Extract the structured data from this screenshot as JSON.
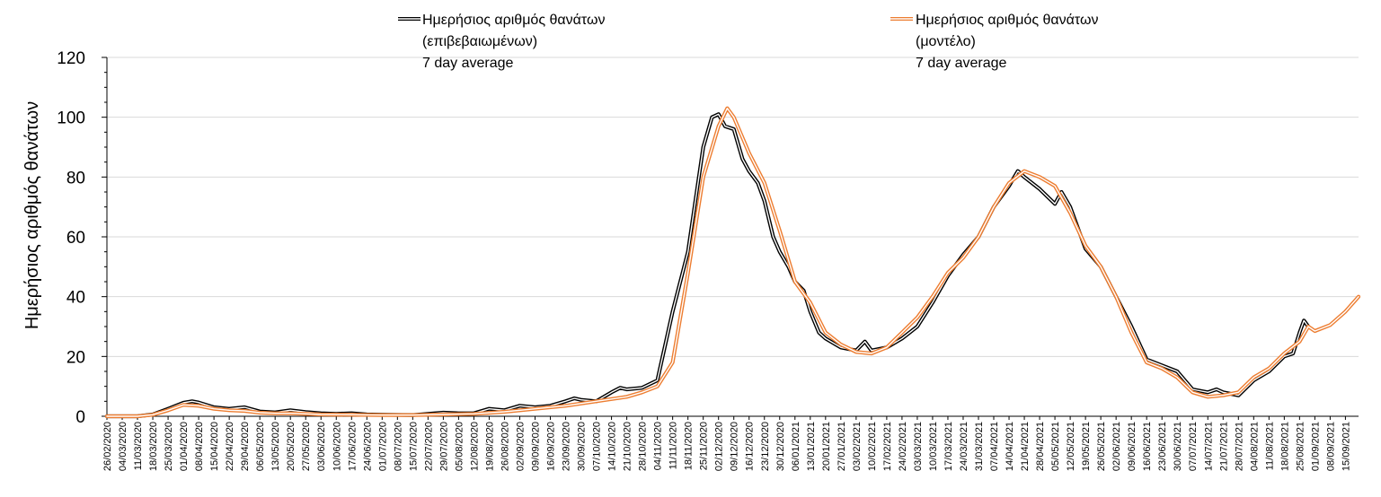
{
  "chart_data": {
    "type": "line",
    "title": "",
    "xlabel": "",
    "ylabel": "Ημερήσιος αριθμός θανάτων",
    "ylim": [
      0,
      120
    ],
    "yticks": [
      0,
      20,
      40,
      60,
      80,
      100,
      120
    ],
    "grid": "horizontal",
    "legend_position": "top",
    "x_start": "26/02/2020",
    "x_end": "21/09/2021",
    "x_tick_labels": [
      "26/02/2020",
      "04/03/2020",
      "11/03/2020",
      "18/03/2020",
      "25/03/2020",
      "01/04/2020",
      "08/04/2020",
      "15/04/2020",
      "22/04/2020",
      "29/04/2020",
      "06/05/2020",
      "13/05/2020",
      "20/05/2020",
      "27/05/2020",
      "03/06/2020",
      "10/06/2020",
      "17/06/2020",
      "24/06/2020",
      "01/07/2020",
      "08/07/2020",
      "15/07/2020",
      "22/07/2020",
      "29/07/2020",
      "05/08/2020",
      "12/08/2020",
      "19/08/2020",
      "26/08/2020",
      "02/09/2020",
      "09/09/2020",
      "16/09/2020",
      "23/09/2020",
      "30/09/2020",
      "07/10/2020",
      "14/10/2020",
      "21/10/2020",
      "28/10/2020",
      "04/11/2020",
      "11/11/2020",
      "18/11/2020",
      "25/11/2020",
      "02/12/2020",
      "09/12/2020",
      "16/12/2020",
      "23/12/2020",
      "30/12/2020",
      "06/01/2021",
      "13/01/2021",
      "20/01/2021",
      "27/01/2021",
      "03/02/2021",
      "10/02/2021",
      "17/02/2021",
      "24/02/2021",
      "03/03/2021",
      "10/03/2021",
      "17/03/2021",
      "24/03/2021",
      "31/03/2021",
      "07/04/2021",
      "14/04/2021",
      "21/04/2021",
      "28/04/2021",
      "05/05/2021",
      "12/05/2021",
      "19/05/2021",
      "26/05/2021",
      "02/06/2021",
      "09/06/2021",
      "16/06/2021",
      "23/06/2021",
      "30/06/2021",
      "07/07/2021",
      "14/07/2021",
      "21/07/2021",
      "28/07/2021",
      "04/08/2021",
      "11/08/2021",
      "18/08/2021",
      "25/08/2021",
      "01/09/2021",
      "08/09/2021",
      "15/09/2021"
    ],
    "series": [
      {
        "name_lines": [
          "Ημερήσιος αριθμός θανάτων",
          "(επιβεβαιωμένων)",
          "7 day average"
        ],
        "color": "#000000",
        "style": "double-line",
        "points": [
          [
            "26/02/2020",
            0
          ],
          [
            "11/03/2020",
            0
          ],
          [
            "18/03/2020",
            0.6
          ],
          [
            "25/03/2020",
            2.5
          ],
          [
            "01/04/2020",
            4.5
          ],
          [
            "05/04/2020",
            5
          ],
          [
            "08/04/2020",
            4.6
          ],
          [
            "15/04/2020",
            3
          ],
          [
            "22/04/2020",
            2.5
          ],
          [
            "29/04/2020",
            3
          ],
          [
            "06/05/2020",
            1.6
          ],
          [
            "13/05/2020",
            1.3
          ],
          [
            "20/05/2020",
            2
          ],
          [
            "27/05/2020",
            1.4
          ],
          [
            "03/06/2020",
            1
          ],
          [
            "10/06/2020",
            0.8
          ],
          [
            "17/06/2020",
            1
          ],
          [
            "24/06/2020",
            0.6
          ],
          [
            "01/07/2020",
            0.5
          ],
          [
            "15/07/2020",
            0.4
          ],
          [
            "22/07/2020",
            0.8
          ],
          [
            "29/07/2020",
            1.2
          ],
          [
            "05/08/2020",
            1
          ],
          [
            "12/08/2020",
            1
          ],
          [
            "19/08/2020",
            2.5
          ],
          [
            "26/08/2020",
            2
          ],
          [
            "02/09/2020",
            3.5
          ],
          [
            "09/09/2020",
            3
          ],
          [
            "16/09/2020",
            3.5
          ],
          [
            "23/09/2020",
            5
          ],
          [
            "27/09/2020",
            6
          ],
          [
            "30/09/2020",
            5.5
          ],
          [
            "07/10/2020",
            5
          ],
          [
            "14/10/2020",
            8
          ],
          [
            "18/10/2020",
            9.5
          ],
          [
            "21/10/2020",
            9
          ],
          [
            "28/10/2020",
            9.5
          ],
          [
            "04/11/2020",
            12
          ],
          [
            "11/11/2020",
            35
          ],
          [
            "18/11/2020",
            55
          ],
          [
            "25/11/2020",
            90
          ],
          [
            "29/11/2020",
            100
          ],
          [
            "02/12/2020",
            101
          ],
          [
            "05/12/2020",
            97
          ],
          [
            "09/12/2020",
            96
          ],
          [
            "13/12/2020",
            86
          ],
          [
            "16/12/2020",
            82
          ],
          [
            "20/12/2020",
            78
          ],
          [
            "23/12/2020",
            72
          ],
          [
            "27/12/2020",
            60
          ],
          [
            "30/12/2020",
            55
          ],
          [
            "03/01/2021",
            50
          ],
          [
            "06/01/2021",
            45
          ],
          [
            "10/01/2021",
            42
          ],
          [
            "13/01/2021",
            35
          ],
          [
            "17/01/2021",
            28
          ],
          [
            "20/01/2021",
            26
          ],
          [
            "27/01/2021",
            23
          ],
          [
            "03/02/2021",
            22
          ],
          [
            "07/02/2021",
            25
          ],
          [
            "10/02/2021",
            22
          ],
          [
            "17/02/2021",
            23
          ],
          [
            "24/02/2021",
            26
          ],
          [
            "03/03/2021",
            30
          ],
          [
            "10/03/2021",
            38
          ],
          [
            "17/03/2021",
            47
          ],
          [
            "24/03/2021",
            54
          ],
          [
            "31/03/2021",
            60
          ],
          [
            "07/04/2021",
            70
          ],
          [
            "14/04/2021",
            77
          ],
          [
            "18/04/2021",
            82
          ],
          [
            "21/04/2021",
            80
          ],
          [
            "28/04/2021",
            76
          ],
          [
            "05/05/2021",
            71
          ],
          [
            "08/05/2021",
            75
          ],
          [
            "12/05/2021",
            70
          ],
          [
            "19/05/2021",
            56
          ],
          [
            "26/05/2021",
            50
          ],
          [
            "02/06/2021",
            40
          ],
          [
            "09/06/2021",
            30
          ],
          [
            "16/06/2021",
            19
          ],
          [
            "23/06/2021",
            17
          ],
          [
            "30/06/2021",
            15
          ],
          [
            "07/07/2021",
            9
          ],
          [
            "14/07/2021",
            8
          ],
          [
            "18/07/2021",
            9
          ],
          [
            "21/07/2021",
            8
          ],
          [
            "28/07/2021",
            7
          ],
          [
            "04/08/2021",
            12
          ],
          [
            "11/08/2021",
            15
          ],
          [
            "18/08/2021",
            20
          ],
          [
            "22/08/2021",
            21
          ],
          [
            "25/08/2021",
            28
          ],
          [
            "27/08/2021",
            32
          ],
          [
            "29/08/2021",
            30
          ]
        ]
      },
      {
        "name_lines": [
          "Ημερήσιος αριθμός θανάτων",
          "(μοντέλο)",
          "7 day average"
        ],
        "color": "#ed7d31",
        "style": "double-line",
        "points": [
          [
            "26/02/2020",
            0
          ],
          [
            "11/03/2020",
            0
          ],
          [
            "18/03/2020",
            0.5
          ],
          [
            "25/03/2020",
            2
          ],
          [
            "01/04/2020",
            3.8
          ],
          [
            "08/04/2020",
            3.5
          ],
          [
            "15/04/2020",
            2.5
          ],
          [
            "22/04/2020",
            2
          ],
          [
            "29/04/2020",
            1.8
          ],
          [
            "06/05/2020",
            1.2
          ],
          [
            "13/05/2020",
            1
          ],
          [
            "20/05/2020",
            1
          ],
          [
            "27/05/2020",
            0.8
          ],
          [
            "03/06/2020",
            0.6
          ],
          [
            "17/06/2020",
            0.5
          ],
          [
            "01/07/2020",
            0.4
          ],
          [
            "15/07/2020",
            0.4
          ],
          [
            "29/07/2020",
            0.6
          ],
          [
            "12/08/2020",
            0.8
          ],
          [
            "26/08/2020",
            1.5
          ],
          [
            "09/09/2020",
            2.5
          ],
          [
            "23/09/2020",
            3.5
          ],
          [
            "07/10/2020",
            5
          ],
          [
            "21/10/2020",
            6.5
          ],
          [
            "28/10/2020",
            8
          ],
          [
            "04/11/2020",
            10
          ],
          [
            "11/11/2020",
            18
          ],
          [
            "18/11/2020",
            48
          ],
          [
            "25/11/2020",
            80
          ],
          [
            "02/12/2020",
            97
          ],
          [
            "06/12/2020",
            103
          ],
          [
            "09/12/2020",
            100
          ],
          [
            "16/12/2020",
            88
          ],
          [
            "23/12/2020",
            78
          ],
          [
            "30/12/2020",
            62
          ],
          [
            "06/01/2021",
            45
          ],
          [
            "13/01/2021",
            38
          ],
          [
            "20/01/2021",
            28
          ],
          [
            "27/01/2021",
            24
          ],
          [
            "03/02/2021",
            21.5
          ],
          [
            "10/02/2021",
            21
          ],
          [
            "17/02/2021",
            23
          ],
          [
            "24/02/2021",
            28
          ],
          [
            "03/03/2021",
            33
          ],
          [
            "10/03/2021",
            40
          ],
          [
            "17/03/2021",
            48
          ],
          [
            "24/03/2021",
            53
          ],
          [
            "31/03/2021",
            60
          ],
          [
            "07/04/2021",
            70
          ],
          [
            "14/04/2021",
            78
          ],
          [
            "21/04/2021",
            82
          ],
          [
            "28/04/2021",
            80
          ],
          [
            "05/05/2021",
            77
          ],
          [
            "12/05/2021",
            68
          ],
          [
            "19/05/2021",
            57
          ],
          [
            "26/05/2021",
            50
          ],
          [
            "02/06/2021",
            40
          ],
          [
            "09/06/2021",
            28
          ],
          [
            "16/06/2021",
            18
          ],
          [
            "23/06/2021",
            16
          ],
          [
            "30/06/2021",
            13
          ],
          [
            "07/07/2021",
            8
          ],
          [
            "14/07/2021",
            6.5
          ],
          [
            "21/07/2021",
            7
          ],
          [
            "28/07/2021",
            8
          ],
          [
            "04/08/2021",
            13
          ],
          [
            "11/08/2021",
            16
          ],
          [
            "18/08/2021",
            21
          ],
          [
            "25/08/2021",
            25
          ],
          [
            "29/08/2021",
            30
          ],
          [
            "01/09/2021",
            28.5
          ],
          [
            "08/09/2021",
            30.5
          ],
          [
            "15/09/2021",
            35
          ],
          [
            "21/09/2021",
            40
          ]
        ]
      }
    ]
  }
}
